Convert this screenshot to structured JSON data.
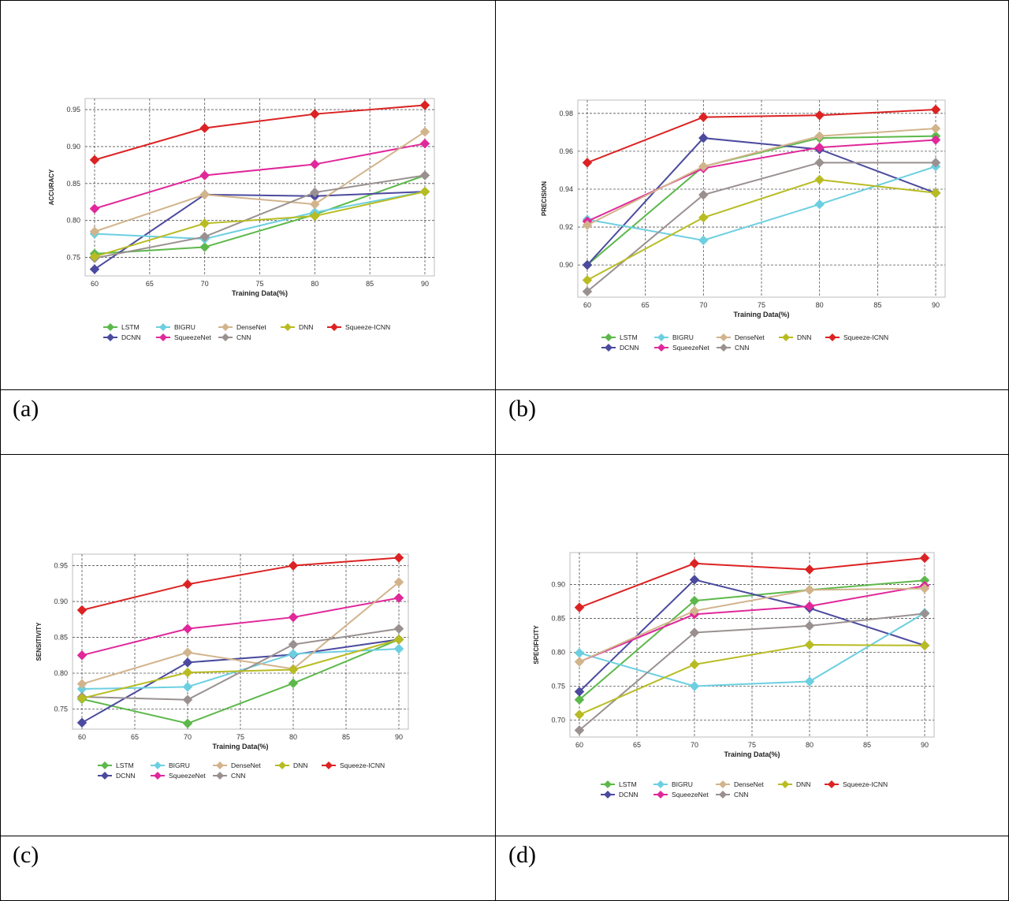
{
  "captions": [
    "(a)",
    "(b)",
    "(c)",
    "(d)"
  ],
  "legend_names": [
    "LSTM",
    "DCNN",
    "BIGRU",
    "SqueezeNet",
    "DenseNet",
    "CNN",
    "DNN",
    "Squeeze-ICNN"
  ],
  "colors": {
    "LSTM": "#5cb84a",
    "DCNN": "#4b4a9e",
    "BIGRU": "#6ccfe0",
    "SqueezeNet": "#e0289a",
    "DenseNet": "#d2b48c",
    "CNN": "#9a9090",
    "DNN": "#b8bc22",
    "Squeeze-ICNN": "#dc2222"
  },
  "chart_data": [
    {
      "type": "line",
      "panel": "(a)",
      "xlabel": "Training Data(%)",
      "ylabel": "ACCURACY",
      "x": [
        60,
        70,
        80,
        90
      ],
      "xticks": [
        "60",
        "65",
        "70",
        "75",
        "80",
        "85",
        "90"
      ],
      "yticks": [
        "0.75",
        "0.80",
        "0.85",
        "0.90",
        "0.95"
      ],
      "ylim": [
        0.725,
        0.965
      ],
      "series": [
        {
          "name": "LSTM",
          "values": [
            0.755,
            0.764,
            0.808,
            0.861
          ]
        },
        {
          "name": "DCNN",
          "values": [
            0.734,
            0.835,
            0.833,
            0.839
          ]
        },
        {
          "name": "BIGRU",
          "values": [
            0.782,
            0.775,
            0.811,
            0.839
          ]
        },
        {
          "name": "SqueezeNet",
          "values": [
            0.816,
            0.861,
            0.876,
            0.904
          ]
        },
        {
          "name": "DenseNet",
          "values": [
            0.785,
            0.835,
            0.822,
            0.92
          ]
        },
        {
          "name": "CNN",
          "values": [
            0.749,
            0.778,
            0.838,
            0.861
          ]
        },
        {
          "name": "DNN",
          "values": [
            0.751,
            0.796,
            0.806,
            0.839
          ]
        },
        {
          "name": "Squeeze-ICNN",
          "values": [
            0.882,
            0.925,
            0.944,
            0.956
          ]
        }
      ]
    },
    {
      "type": "line",
      "panel": "(b)",
      "xlabel": "Training Data(%)",
      "ylabel": "PRECISION",
      "x": [
        60,
        70,
        80,
        90
      ],
      "xticks": [
        "60",
        "65",
        "70",
        "75",
        "80",
        "85",
        "90"
      ],
      "yticks": [
        "0.90",
        "0.92",
        "0.94",
        "0.96",
        "0.98"
      ],
      "ylim": [
        0.883,
        0.987
      ],
      "series": [
        {
          "name": "LSTM",
          "values": [
            0.9,
            0.952,
            0.967,
            0.968
          ]
        },
        {
          "name": "DCNN",
          "values": [
            0.9,
            0.967,
            0.961,
            0.938
          ]
        },
        {
          "name": "BIGRU",
          "values": [
            0.924,
            0.913,
            0.932,
            0.952
          ]
        },
        {
          "name": "SqueezeNet",
          "values": [
            0.923,
            0.951,
            0.962,
            0.966
          ]
        },
        {
          "name": "DenseNet",
          "values": [
            0.921,
            0.952,
            0.968,
            0.972
          ]
        },
        {
          "name": "CNN",
          "values": [
            0.886,
            0.937,
            0.954,
            0.954
          ]
        },
        {
          "name": "DNN",
          "values": [
            0.892,
            0.925,
            0.945,
            0.938
          ]
        },
        {
          "name": "Squeeze-ICNN",
          "values": [
            0.954,
            0.978,
            0.979,
            0.982
          ]
        }
      ]
    },
    {
      "type": "line",
      "panel": "(c)",
      "xlabel": "Training Data(%)",
      "ylabel": "SENSITIVITY",
      "x": [
        60,
        70,
        80,
        90
      ],
      "xticks": [
        "60",
        "65",
        "70",
        "75",
        "80",
        "85",
        "90"
      ],
      "yticks": [
        "0.75",
        "0.80",
        "0.85",
        "0.90",
        "0.95"
      ],
      "ylim": [
        0.722,
        0.966
      ],
      "series": [
        {
          "name": "LSTM",
          "values": [
            0.764,
            0.73,
            0.786,
            0.847
          ]
        },
        {
          "name": "DCNN",
          "values": [
            0.731,
            0.815,
            0.826,
            0.847
          ]
        },
        {
          "name": "BIGRU",
          "values": [
            0.778,
            0.781,
            0.827,
            0.834
          ]
        },
        {
          "name": "SqueezeNet",
          "values": [
            0.825,
            0.862,
            0.878,
            0.905
          ]
        },
        {
          "name": "DenseNet",
          "values": [
            0.785,
            0.829,
            0.806,
            0.927
          ]
        },
        {
          "name": "CNN",
          "values": [
            0.767,
            0.763,
            0.84,
            0.862
          ]
        },
        {
          "name": "DNN",
          "values": [
            0.765,
            0.801,
            0.805,
            0.847
          ]
        },
        {
          "name": "Squeeze-ICNN",
          "values": [
            0.888,
            0.924,
            0.95,
            0.961
          ]
        }
      ]
    },
    {
      "type": "line",
      "panel": "(d)",
      "xlabel": "Training Data(%)",
      "ylabel": "SPECIFICITY",
      "x": [
        60,
        70,
        80,
        90
      ],
      "xticks": [
        "60",
        "65",
        "70",
        "75",
        "80",
        "85",
        "90"
      ],
      "yticks": [
        "0.70",
        "0.75",
        "0.80",
        "0.85",
        "0.90"
      ],
      "ylim": [
        0.675,
        0.947
      ],
      "series": [
        {
          "name": "LSTM",
          "values": [
            0.73,
            0.876,
            0.892,
            0.906
          ]
        },
        {
          "name": "DCNN",
          "values": [
            0.742,
            0.907,
            0.865,
            0.81
          ]
        },
        {
          "name": "BIGRU",
          "values": [
            0.799,
            0.75,
            0.757,
            0.858
          ]
        },
        {
          "name": "SqueezeNet",
          "values": [
            0.786,
            0.856,
            0.868,
            0.898
          ]
        },
        {
          "name": "DenseNet",
          "values": [
            0.786,
            0.861,
            0.892,
            0.894
          ]
        },
        {
          "name": "CNN",
          "values": [
            0.685,
            0.829,
            0.839,
            0.857
          ]
        },
        {
          "name": "DNN",
          "values": [
            0.708,
            0.782,
            0.811,
            0.81
          ]
        },
        {
          "name": "Squeeze-ICNN",
          "values": [
            0.866,
            0.931,
            0.922,
            0.939
          ]
        }
      ]
    }
  ]
}
